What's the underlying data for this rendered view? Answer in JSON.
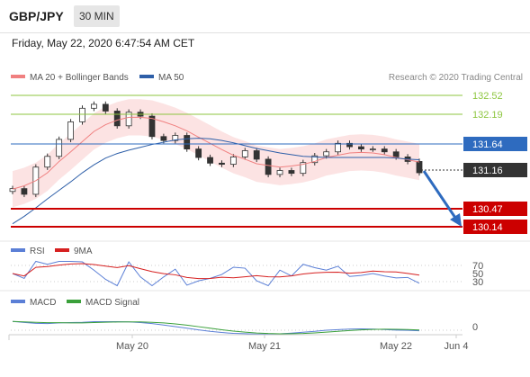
{
  "header": {
    "pair": "GBP/JPY",
    "timeframe": "30 MIN",
    "datetime": "Friday, May 22, 2020 6:47:54 AM CET"
  },
  "colors": {
    "bollinger": "#f08080",
    "ma50": "#2e5fa8",
    "resistance": "#8dc63f",
    "support": "#cc0000",
    "current": "#333333",
    "pivot": "#2e6bbf",
    "arrow": "#2e6bbf",
    "rsi": "#5b7fd6",
    "rsi_ma": "#d62020",
    "macd": "#5b7fd6",
    "macd_signal": "#3aa03a"
  },
  "legend": {
    "bollinger_label": "MA 20 + Bollinger Bands",
    "ma50_label": "MA 50",
    "credit": "Research © 2020 Trading Central"
  },
  "levels": {
    "r2": "132.52",
    "r1": "132.19",
    "pivot": "131.64",
    "current": "131.16",
    "s1": "130.47",
    "s2": "130.14"
  },
  "rsi_panel": {
    "legend_rsi": "RSI",
    "legend_ma": "9MA",
    "ticks": [
      "70",
      "50",
      "30"
    ]
  },
  "macd_panel": {
    "legend_macd": "MACD",
    "legend_signal": "MACD Signal",
    "tick": "0"
  },
  "x_axis": {
    "labels": [
      "May 20",
      "May 21",
      "May 22",
      "Jun 4"
    ]
  },
  "chart_data": {
    "type": "candlestick",
    "series": [
      {
        "name": "MA 20 + Bollinger Bands",
        "values": [
          130.87,
          130.93,
          131.02,
          131.16,
          131.36,
          131.53,
          131.71,
          131.89,
          132.01,
          132.09,
          132.14,
          132.14,
          132.12,
          132.06,
          131.99,
          131.9,
          131.79,
          131.68,
          131.57,
          131.47,
          131.4,
          131.32,
          131.29,
          131.26,
          131.28,
          131.31,
          131.36,
          131.43,
          131.47,
          131.51,
          131.52,
          131.51,
          131.48,
          131.43,
          131.39,
          131.35
        ]
      },
      {
        "name": "MA 50",
        "values": [
          130.26,
          130.39,
          130.54,
          130.7,
          130.85,
          131.0,
          131.16,
          131.3,
          131.42,
          131.5,
          131.56,
          131.61,
          131.66,
          131.7,
          131.74,
          131.76,
          131.77,
          131.76,
          131.73,
          131.69,
          131.64,
          131.59,
          131.55,
          131.51,
          131.48,
          131.45,
          131.44,
          131.43,
          131.43,
          131.43,
          131.43,
          131.43,
          131.43,
          131.42,
          131.4,
          131.39
        ]
      }
    ],
    "close": [
      130.88,
      130.78,
      131.26,
      131.45,
      131.75,
      132.06,
      132.3,
      132.37,
      132.25,
      131.99,
      132.23,
      132.16,
      131.8,
      131.73,
      131.82,
      131.58,
      131.43,
      131.33,
      131.31,
      131.44,
      131.55,
      131.4,
      131.13,
      131.2,
      131.15,
      131.34,
      131.46,
      131.53,
      131.68,
      131.62,
      131.58,
      131.58,
      131.53,
      131.44,
      131.36,
      131.16
    ],
    "levels": [
      132.52,
      132.19,
      131.64,
      131.16,
      130.47,
      130.14
    ],
    "forecast_target": 130.14,
    "ylim": [
      130.0,
      132.75
    ],
    "x_ticks": [
      "May 20",
      "May 21",
      "May 22",
      "Jun 4"
    ],
    "grid": false,
    "legend_position": "top-left"
  }
}
